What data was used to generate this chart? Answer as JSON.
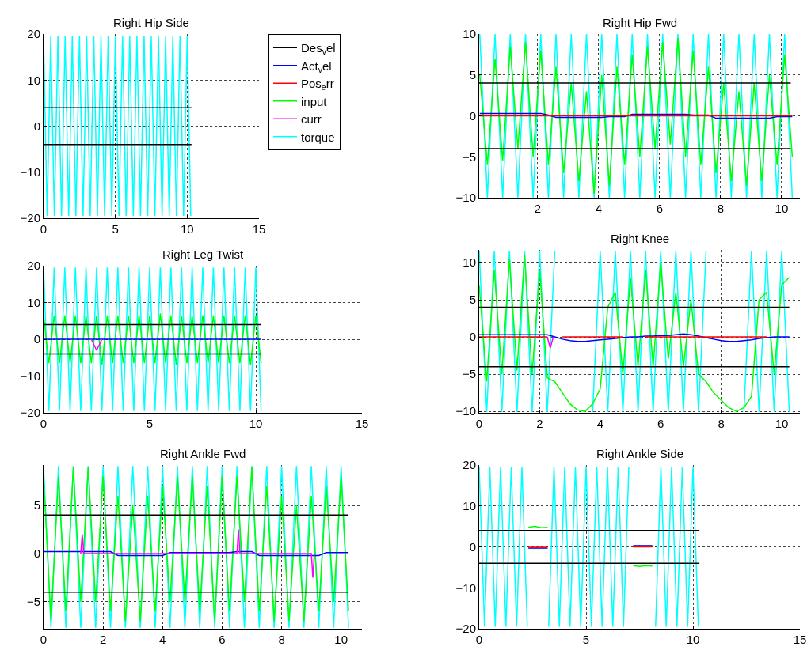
{
  "chart_data": [
    {
      "type": "line",
      "title": "Right Hip Side",
      "xlim": [
        0,
        15
      ],
      "xticks": [
        0,
        5,
        10,
        15
      ],
      "ylim": [
        -20,
        20
      ],
      "yticks": [
        -20,
        -10,
        0,
        10,
        20
      ],
      "grid": true,
      "legend": "right",
      "x": [
        0,
        0.25,
        0.5,
        0.75,
        1,
        1.25,
        1.5,
        1.75,
        2,
        2.25,
        2.5,
        2.75,
        3,
        3.25,
        3.5,
        3.75,
        4,
        4.25,
        4.5,
        4.75,
        5,
        5.25,
        5.5,
        5.75,
        6,
        6.25,
        6.5,
        6.75,
        7,
        7.25,
        7.5,
        7.75,
        8,
        8.25,
        8.5,
        8.75,
        9,
        9.25,
        9.5,
        9.75,
        10,
        10.25
      ],
      "series": [
        {
          "name": "Des$_{v}$el",
          "color": "#000000",
          "values": [
            null,
            null,
            null,
            null,
            null,
            null,
            null,
            null,
            null,
            null,
            null,
            null,
            null,
            null,
            null,
            null,
            null,
            null,
            null,
            null,
            null,
            null,
            null,
            null,
            null,
            null,
            null,
            null,
            null,
            null,
            null,
            null,
            null,
            null,
            null,
            null,
            null,
            null,
            null,
            null,
            null,
            null
          ]
        },
        {
          "name": "Act$_{v}$el",
          "color": "#0000ff",
          "values": [
            null,
            null,
            null,
            null,
            null,
            null,
            null,
            null,
            null,
            null,
            null,
            null,
            null,
            null,
            null,
            null,
            null,
            null,
            null,
            null,
            null,
            null,
            null,
            null,
            null,
            null,
            null,
            null,
            null,
            null,
            null,
            null,
            null,
            null,
            null,
            null,
            null,
            null,
            null,
            null,
            null,
            null
          ]
        },
        {
          "name": "Pos$_{e}$rr",
          "color": "#ff0000",
          "values": [
            null,
            null,
            null,
            null,
            null,
            null,
            null,
            null,
            null,
            null,
            null,
            null,
            null,
            null,
            null,
            null,
            null,
            null,
            null,
            null,
            null,
            null,
            null,
            null,
            null,
            null,
            null,
            null,
            null,
            null,
            null,
            null,
            null,
            null,
            null,
            null,
            null,
            null,
            null,
            null,
            null,
            null
          ]
        },
        {
          "name": "input",
          "color": "#00ff00",
          "values": [
            null,
            null,
            null,
            null,
            null,
            null,
            null,
            null,
            null,
            null,
            null,
            null,
            null,
            null,
            null,
            null,
            null,
            null,
            null,
            null,
            null,
            null,
            null,
            null,
            null,
            null,
            null,
            null,
            null,
            null,
            null,
            null,
            null,
            null,
            null,
            null,
            null,
            null,
            null,
            null,
            null,
            null
          ]
        },
        {
          "name": "curr",
          "color": "#ff00ff",
          "values": [
            null,
            null,
            null,
            null,
            null,
            null,
            null,
            null,
            null,
            null,
            null,
            null,
            null,
            null,
            null,
            null,
            null,
            null,
            null,
            null,
            null,
            null,
            null,
            null,
            null,
            null,
            null,
            null,
            null,
            null,
            null,
            null,
            null,
            null,
            null,
            null,
            null,
            null,
            null,
            null,
            null,
            null
          ]
        },
        {
          "name": "torque",
          "color": "#00ffff",
          "values": [
            19.5,
            -19.5,
            19.5,
            -19.5,
            19.5,
            -19.5,
            19.5,
            -19.5,
            19.5,
            -19.5,
            19.5,
            -19.5,
            19.5,
            -19.5,
            19.5,
            -19.5,
            19.5,
            -19.5,
            19.5,
            -19.5,
            19.5,
            -19.5,
            19.5,
            -19.5,
            19.5,
            -19.5,
            19.5,
            -19.5,
            19.5,
            -19.5,
            19.5,
            -19.5,
            19.5,
            -19.5,
            19.5,
            -19.5,
            19.5,
            -19.5,
            19.5,
            -19.5,
            19.5,
            -19.5
          ]
        },
        {
          "color": "#000000",
          "x": [
            0,
            10.3
          ],
          "values": [
            4,
            4
          ]
        },
        {
          "color": "#000000",
          "x": [
            0,
            10.3
          ],
          "values": [
            -4,
            -4
          ]
        }
      ]
    },
    {
      "type": "line",
      "title": "Right Hip Fwd",
      "xlim": [
        0.08,
        10.6
      ],
      "xticks": [
        2,
        4,
        6,
        8,
        10
      ],
      "ylim": [
        -10,
        10
      ],
      "yticks": [
        -10,
        -5,
        0,
        5,
        10
      ],
      "grid": true,
      "x": [
        0.1,
        0.35,
        0.6,
        0.85,
        1.1,
        1.35,
        1.6,
        1.85,
        2.1,
        2.35,
        2.6,
        2.85,
        3.1,
        3.35,
        3.6,
        3.85,
        4.1,
        4.35,
        4.6,
        4.85,
        5.1,
        5.35,
        5.6,
        5.85,
        6.1,
        6.35,
        6.6,
        6.85,
        7.1,
        7.35,
        7.6,
        7.85,
        8.1,
        8.35,
        8.6,
        8.85,
        9.1,
        9.35,
        9.6,
        9.85,
        10.1,
        10.35
      ],
      "series": [
        {
          "color": "#00ffff",
          "values": [
            10,
            -10,
            10,
            -10,
            10,
            -10,
            10,
            -10,
            10,
            -10,
            10,
            -10,
            10,
            -10,
            10,
            -10,
            10,
            -10,
            10,
            -10,
            10,
            -10,
            10,
            -10,
            10,
            -10,
            10,
            -10,
            10,
            -10,
            10,
            -10,
            10,
            -10,
            10,
            -10,
            10,
            -10,
            10,
            -10,
            10,
            -10
          ]
        },
        {
          "color": "#00ff00",
          "values": [
            5,
            -6,
            7,
            -5.5,
            8.5,
            -4,
            9,
            -5,
            8,
            -6,
            6,
            -7,
            4,
            -8,
            3,
            -9.5,
            5,
            -8.5,
            6,
            -6,
            7.5,
            -5,
            8.5,
            -4,
            9,
            -3.5,
            9.5,
            -5,
            8,
            -6,
            6,
            -7,
            4,
            -8,
            3,
            -8.5,
            4,
            -8,
            5,
            -6,
            7.5,
            -5
          ]
        },
        {
          "color": "#0000ff",
          "values": [
            0.3,
            0.3,
            0.3,
            0.3,
            0.3,
            0.3,
            0.3,
            0.3,
            0.3,
            0.1,
            -0.2,
            -0.2,
            -0.2,
            -0.2,
            -0.2,
            -0.2,
            -0.2,
            -0.1,
            -0.1,
            -0.1,
            0.2,
            0.2,
            0.2,
            0.2,
            0.2,
            0.2,
            0.2,
            0.2,
            0.1,
            0.1,
            0.1,
            -0.3,
            -0.3,
            -0.3,
            -0.3,
            -0.3,
            -0.3,
            -0.3,
            -0.3,
            -0.1,
            -0.1,
            -0.1
          ]
        },
        {
          "color": "#ff0000",
          "values": [
            0,
            0,
            0,
            0,
            0,
            0,
            0,
            0,
            0,
            0,
            0,
            0,
            0,
            0,
            0,
            0,
            0,
            0,
            0,
            0,
            0,
            0,
            0,
            0,
            0,
            0,
            0,
            0,
            0,
            0,
            0,
            0,
            0,
            0,
            0,
            0,
            0,
            0,
            0,
            0,
            0,
            0
          ]
        },
        {
          "color": "#000000",
          "x": [
            0.08,
            10.3
          ],
          "values": [
            4,
            4
          ]
        },
        {
          "color": "#000000",
          "x": [
            0.08,
            10.3
          ],
          "values": [
            -4,
            -4
          ]
        }
      ]
    },
    {
      "type": "line",
      "title": "Right Leg Twist",
      "xlim": [
        0,
        15
      ],
      "xticks": [
        0,
        5,
        10,
        15
      ],
      "ylim": [
        -20,
        20
      ],
      "yticks": [
        -20,
        -10,
        0,
        10,
        20
      ],
      "grid": true,
      "x": [
        0,
        0.25,
        0.5,
        0.75,
        1,
        1.25,
        1.5,
        1.75,
        2,
        2.25,
        2.5,
        2.75,
        3,
        3.25,
        3.5,
        3.75,
        4,
        4.25,
        4.5,
        4.75,
        5,
        5.25,
        5.5,
        5.75,
        6,
        6.25,
        6.5,
        6.75,
        7,
        7.25,
        7.5,
        7.75,
        8,
        8.25,
        8.5,
        8.75,
        9,
        9.25,
        9.5,
        9.75,
        10,
        10.25
      ],
      "series": [
        {
          "color": "#00ffff",
          "values": [
            19.5,
            -19.5,
            19.5,
            -19.5,
            19.5,
            -19.5,
            19.5,
            -19.5,
            19.5,
            -19.5,
            19.5,
            -19.5,
            19.5,
            -19.5,
            19.5,
            -19.5,
            19.5,
            -19.5,
            19.5,
            -19.5,
            19.5,
            -19.5,
            19.5,
            -19.5,
            19.5,
            -19.5,
            19.5,
            -19.5,
            19.5,
            -19.5,
            19.5,
            -19.5,
            19.5,
            -19.5,
            19.5,
            -19.5,
            19.5,
            -19.5,
            19.5,
            -19.5,
            19.5,
            -19.5
          ]
        },
        {
          "color": "#00ff00",
          "values": [
            6.5,
            -6.5,
            6.5,
            -6.5,
            6.5,
            -6.5,
            6.5,
            -6.5,
            6.5,
            -6.5,
            6.5,
            -7,
            6.5,
            -6.5,
            6.5,
            -6.5,
            6.5,
            -6.5,
            6.5,
            -6.5,
            6.5,
            -6.5,
            7,
            -6.5,
            6.5,
            -7,
            6.5,
            -6.5,
            6.5,
            -6.5,
            6.5,
            -6.5,
            6.5,
            -6.5,
            6.5,
            -6.5,
            6.5,
            -6.5,
            6.5,
            -7,
            6.5,
            -6.5
          ]
        },
        {
          "color": "#0000ff",
          "values": [
            0,
            0,
            0,
            0,
            0,
            0,
            0,
            0,
            0,
            0,
            0,
            0,
            0,
            0,
            0,
            0,
            0,
            0,
            0,
            0,
            0,
            0,
            0,
            0,
            0,
            0,
            0,
            0,
            0,
            0,
            0,
            0,
            0,
            0,
            0,
            0,
            0,
            0,
            0,
            0,
            0,
            0
          ]
        },
        {
          "color": "#ff00ff",
          "x": [
            2.25,
            2.5,
            2.75
          ],
          "values": [
            0,
            -3,
            0
          ]
        },
        {
          "color": "#000000",
          "x": [
            0,
            10.25
          ],
          "values": [
            4,
            4
          ]
        },
        {
          "color": "#000000",
          "x": [
            0,
            10.25
          ],
          "values": [
            -4,
            -4
          ]
        }
      ]
    },
    {
      "type": "line",
      "title": "Right Knee",
      "xlim": [
        0,
        10.6
      ],
      "xticks": [
        0,
        2,
        4,
        6,
        8,
        10
      ],
      "ylim": [
        -10.2,
        11.7
      ],
      "yticks": [
        -10,
        -5,
        0,
        5,
        10
      ],
      "grid": true,
      "x": [
        0,
        0.25,
        0.5,
        0.75,
        1,
        1.25,
        1.5,
        1.75,
        2,
        2.25,
        2.5,
        2.75,
        3,
        3.25,
        3.5,
        3.75,
        4,
        4.25,
        4.5,
        4.75,
        5,
        5.25,
        5.5,
        5.75,
        6,
        6.25,
        6.5,
        6.75,
        7,
        7.25,
        7.5,
        7.75,
        8,
        8.25,
        8.5,
        8.75,
        9,
        9.25,
        9.5,
        9.75,
        10,
        10.25
      ],
      "series": [
        {
          "color": "#00ffff",
          "values": [
            11.6,
            -10.1,
            11.6,
            -10.1,
            11.6,
            -10.1,
            11.6,
            -10.1,
            11.6,
            -10.1,
            11.6,
            null,
            null,
            null,
            null,
            -10.1,
            11.6,
            -10.1,
            11.6,
            -10.1,
            11.6,
            -10.1,
            11.6,
            -10.1,
            11.6,
            -10.1,
            11.6,
            -10.1,
            11.6,
            -10.1,
            11.6,
            null,
            null,
            null,
            null,
            -10.1,
            11.6,
            -10.1,
            11.6,
            -10.1,
            11.6,
            -10.1
          ]
        },
        {
          "color": "#00ff00",
          "values": [
            7,
            -6,
            9,
            -5,
            10.5,
            -4.5,
            11,
            -5,
            9,
            -5.5,
            -6,
            -7.5,
            -9,
            -9.8,
            -10,
            -9,
            -7,
            4,
            6,
            -5,
            8,
            -4,
            9,
            -4,
            10,
            -3,
            6,
            -4,
            5,
            -5,
            -6,
            -7.5,
            -8.5,
            -9.5,
            -10,
            -9.5,
            -8,
            5,
            6,
            -5,
            7,
            8
          ]
        },
        {
          "color": "#0000ff",
          "values": [
            0.3,
            0.3,
            0.3,
            0.3,
            0.3,
            0.3,
            0.3,
            0.3,
            0.3,
            0.3,
            0,
            -0.3,
            -0.5,
            -0.6,
            -0.6,
            -0.5,
            -0.4,
            -0.3,
            -0.2,
            -0.1,
            0,
            0,
            0.1,
            0.1,
            0.2,
            0.2,
            0.3,
            0.4,
            0.3,
            0.1,
            -0.1,
            -0.3,
            -0.5,
            -0.6,
            -0.6,
            -0.5,
            -0.4,
            -0.2,
            -0.1,
            0,
            0,
            0
          ]
        },
        {
          "color": "#ff0000",
          "values": [
            0,
            0,
            0,
            0,
            0,
            0,
            0,
            0,
            0,
            0,
            null,
            0,
            0,
            0,
            0,
            0,
            0,
            0,
            0,
            0,
            null,
            null,
            0,
            0,
            0,
            0,
            0,
            0,
            0,
            0,
            0,
            0,
            0,
            0,
            0,
            0,
            0,
            0,
            0,
            null,
            null,
            null
          ]
        },
        {
          "color": "#ff00ff",
          "x": [
            2.25,
            2.35,
            2.45
          ],
          "values": [
            0,
            -1.5,
            0
          ]
        },
        {
          "color": "#000000",
          "x": [
            0,
            10.25
          ],
          "values": [
            4,
            4
          ]
        },
        {
          "color": "#000000",
          "x": [
            0,
            10.25
          ],
          "values": [
            -4,
            -4
          ]
        }
      ]
    },
    {
      "type": "line",
      "title": "Right Ankle Fwd",
      "xlim": [
        0,
        10.7
      ],
      "xticks": [
        0,
        2,
        4,
        6,
        8,
        10
      ],
      "ylim": [
        -7.8,
        9.2
      ],
      "yticks": [
        -5,
        0,
        5
      ],
      "grid": true,
      "x": [
        0,
        0.25,
        0.5,
        0.75,
        1,
        1.25,
        1.5,
        1.75,
        2,
        2.25,
        2.5,
        2.75,
        3,
        3.25,
        3.5,
        3.75,
        4,
        4.25,
        4.5,
        4.75,
        5,
        5.25,
        5.5,
        5.75,
        6,
        6.25,
        6.5,
        6.75,
        7,
        7.25,
        7.5,
        7.75,
        8,
        8.25,
        8.5,
        8.75,
        9,
        9.25,
        9.5,
        9.75,
        10,
        10.25
      ],
      "series": [
        {
          "color": "#00ffff",
          "values": [
            9.1,
            -7.7,
            9.1,
            -7.7,
            9.1,
            -7.7,
            9.1,
            -7.7,
            9.1,
            -7.7,
            9.1,
            -7.7,
            9.1,
            -7.7,
            9.1,
            -7.7,
            9.1,
            -7.7,
            9.1,
            -7.7,
            9.1,
            -7.7,
            9.1,
            -7.7,
            9.1,
            -7.7,
            9.1,
            -7.7,
            9.1,
            -7.7,
            9.1,
            -7.7,
            9.1,
            -7.7,
            9.1,
            -7.7,
            9.1,
            -7.7,
            9.1,
            -7.7,
            9.1,
            -7.7
          ]
        },
        {
          "color": "#00ff00",
          "values": [
            8,
            -7,
            8,
            -6,
            9,
            -5,
            9,
            -5,
            8,
            -6,
            6,
            -7,
            5,
            -7,
            6,
            -6,
            7,
            -5,
            8,
            -5,
            8,
            -6,
            7,
            -7,
            8,
            -6,
            8,
            -5,
            9,
            -6,
            7,
            -7,
            6,
            -7,
            5,
            -7,
            6,
            -6,
            7,
            -5,
            8,
            -6
          ]
        },
        {
          "color": "#0000ff",
          "values": [
            0.2,
            0.2,
            0.2,
            0.2,
            0.2,
            0.2,
            0.2,
            0.2,
            0.2,
            0.2,
            -0.2,
            -0.2,
            -0.2,
            -0.2,
            -0.2,
            -0.2,
            -0.2,
            0.1,
            0.1,
            0.1,
            0.1,
            0.1,
            0.1,
            0.1,
            0.1,
            0.1,
            0.2,
            0.2,
            0.2,
            -0.2,
            -0.2,
            -0.2,
            -0.2,
            -0.2,
            -0.2,
            -0.2,
            -0.2,
            -0.2,
            0.1,
            0.1,
            0.1,
            0.1
          ]
        },
        {
          "color": "#ff00ff",
          "x": [
            1.25,
            1.3,
            1.35,
            6.5,
            6.55,
            6.6,
            9.0,
            9.05,
            9.1
          ],
          "values": [
            0,
            2,
            0,
            0,
            2.5,
            0,
            0,
            -2.5,
            0
          ]
        },
        {
          "color": "#000000",
          "x": [
            0,
            10.25
          ],
          "values": [
            4,
            4
          ]
        },
        {
          "color": "#000000",
          "x": [
            0,
            10.25
          ],
          "values": [
            -4,
            -4
          ]
        }
      ]
    },
    {
      "type": "line",
      "title": "Right Ankle Side",
      "xlim": [
        0,
        15
      ],
      "xticks": [
        0,
        5,
        10,
        15
      ],
      "ylim": [
        -20,
        20
      ],
      "yticks": [
        -20,
        -10,
        0,
        10,
        20
      ],
      "grid": true,
      "x": [
        0,
        0.25,
        0.5,
        0.75,
        1,
        1.25,
        1.5,
        1.75,
        2,
        2.25,
        2.5,
        2.75,
        3,
        3.25,
        3.5,
        3.75,
        4,
        4.25,
        4.5,
        4.75,
        5,
        5.25,
        5.5,
        5.75,
        6,
        6.25,
        6.5,
        6.75,
        7,
        7.25,
        7.5,
        7.75,
        8,
        8.25,
        8.5,
        8.75,
        9,
        9.25,
        9.5,
        9.75,
        10,
        10.25
      ],
      "series": [
        {
          "color": "#00ffff",
          "values": [
            19.5,
            -19.5,
            19.5,
            -19.5,
            19.5,
            -19.5,
            19.5,
            -19.5,
            19.5,
            -19.5,
            null,
            null,
            null,
            -19.5,
            19.5,
            -19.5,
            19.5,
            -19.5,
            19.5,
            -19.5,
            19.5,
            -19.5,
            19.5,
            -19.5,
            19.5,
            -19.5,
            19.5,
            -19.5,
            19.5,
            null,
            null,
            null,
            null,
            -19.5,
            19.5,
            -19.5,
            19.5,
            -19.5,
            19.5,
            -19.5,
            19.5,
            -19.5
          ]
        },
        {
          "color": "#00ff00",
          "x": [
            2.3,
            2.6,
            2.9,
            3.2,
            5,
            7.2,
            7.5,
            7.8,
            8.1
          ],
          "values": [
            4.8,
            5,
            4.7,
            4.8,
            null,
            -4.6,
            -4.8,
            -4.6,
            -4.7
          ]
        },
        {
          "color": "#0000ff",
          "x": [
            2.3,
            2.6,
            2.9,
            3.2,
            5,
            7.2,
            7.5,
            7.8,
            8.1
          ],
          "values": [
            -0.3,
            -0.3,
            -0.3,
            -0.3,
            null,
            0.3,
            0.3,
            0.3,
            0.3
          ]
        },
        {
          "color": "#ff0000",
          "x": [
            2.3,
            2.6,
            2.9,
            3.2,
            5,
            7.2,
            7.5,
            7.8,
            8.1
          ],
          "values": [
            -0.1,
            -0.1,
            -0.1,
            -0.1,
            null,
            0,
            0,
            0,
            0
          ]
        },
        {
          "color": "#000000",
          "x": [
            0,
            10.3
          ],
          "values": [
            4,
            4
          ]
        },
        {
          "color": "#000000",
          "x": [
            0,
            10.3
          ],
          "values": [
            -4,
            -4
          ]
        }
      ]
    }
  ]
}
